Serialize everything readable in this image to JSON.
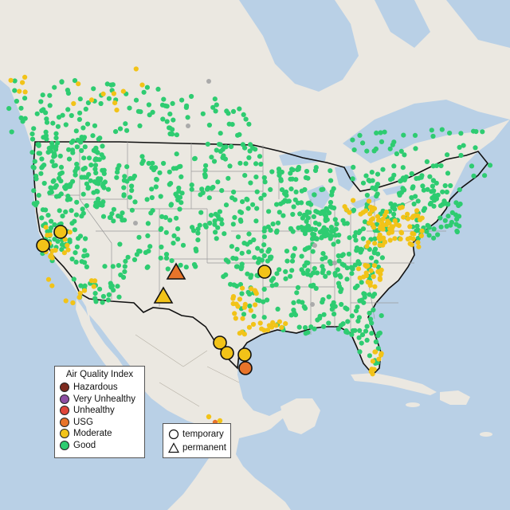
{
  "legend": {
    "title": "Air Quality Index",
    "categories": [
      {
        "label": "Hazardous",
        "color": "#7e2b1f"
      },
      {
        "label": "Very Unhealthy",
        "color": "#8e4fa3"
      },
      {
        "label": "Unhealthy",
        "color": "#e0463a"
      },
      {
        "label": "USG",
        "color": "#e8742a"
      },
      {
        "label": "Moderate",
        "color": "#f2c318"
      },
      {
        "label": "Good",
        "color": "#2ecc71"
      }
    ]
  },
  "shape_legend": {
    "items": [
      {
        "label": "temporary",
        "shape": "circle"
      },
      {
        "label": "permanent",
        "shape": "triangle"
      }
    ]
  },
  "colors": {
    "water": "#b9d0e6",
    "land": "#ebe8e1",
    "border": "#111111",
    "state_line": "#9a9a9a",
    "nodata": "#aaaaaa"
  },
  "monitors": {
    "good_count_shown": 900,
    "moderate_count_shown": 200
  }
}
